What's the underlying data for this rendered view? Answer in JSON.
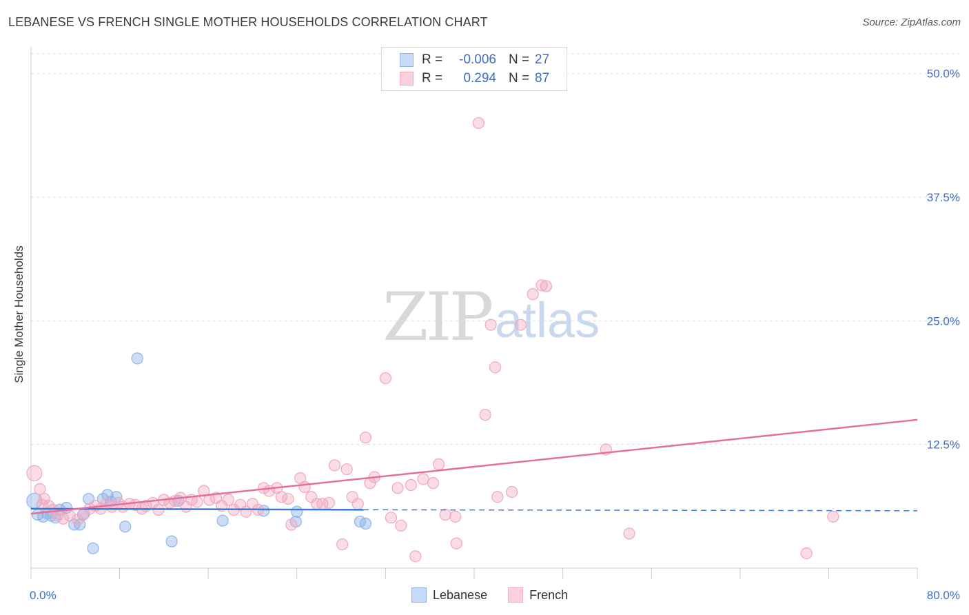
{
  "header": {
    "title": "LEBANESE VS FRENCH SINGLE MOTHER HOUSEHOLDS CORRELATION CHART",
    "source": "Source: ZipAtlas.com"
  },
  "watermark": {
    "zip": "ZIP",
    "atlas": "atlas"
  },
  "legend": {
    "rows": [
      {
        "r_label": "R =",
        "r_value": "-0.006",
        "n_label": "N =",
        "n_value": "27",
        "color": "#8fb4e8"
      },
      {
        "r_label": "R =",
        "r_value": "0.294",
        "n_label": "N =",
        "n_value": "87",
        "color": "#f1a7bf"
      }
    ]
  },
  "bottom_legend": {
    "items": [
      {
        "label": "Lebanese",
        "color": "#8fb4e8"
      },
      {
        "label": "French",
        "color": "#f1a7bf"
      }
    ]
  },
  "chart_data": {
    "type": "scatter",
    "title": "LEBANESE VS FRENCH SINGLE MOTHER HOUSEHOLDS CORRELATION CHART",
    "xlabel": "",
    "ylabel": "Single Mother Households",
    "xlim": [
      0,
      80
    ],
    "ylim": [
      0,
      52
    ],
    "x_tick_labels": [
      "0.0%",
      "80.0%"
    ],
    "y_ticks": [
      12.5,
      25.0,
      37.5,
      50.0
    ],
    "y_tick_labels": [
      "12.5%",
      "25.0%",
      "37.5%",
      "50.0%"
    ],
    "grid": "horizontal-dashed",
    "legend_position": "top-center",
    "series": [
      {
        "name": "Lebanese",
        "color": "#8fb4e8",
        "line_color": "#3a78d4",
        "trend": {
          "x": [
            0,
            30
          ],
          "y": [
            6.0,
            5.9
          ],
          "extended_x": [
            30,
            80
          ],
          "extended_y": [
            5.9,
            5.8
          ]
        },
        "points": [
          [
            0.3,
            6.8
          ],
          [
            0.6,
            5.4
          ],
          [
            1.1,
            5.2
          ],
          [
            1.5,
            5.5
          ],
          [
            1.8,
            5.3
          ],
          [
            2.2,
            5.1
          ],
          [
            2.6,
            5.9
          ],
          [
            3.2,
            6.1
          ],
          [
            3.9,
            4.4
          ],
          [
            4.4,
            4.4
          ],
          [
            4.7,
            5.4
          ],
          [
            5.2,
            7.0
          ],
          [
            6.5,
            7.0
          ],
          [
            6.9,
            7.4
          ],
          [
            7.2,
            6.7
          ],
          [
            7.7,
            7.2
          ],
          [
            5.6,
            2.0
          ],
          [
            8.5,
            4.2
          ],
          [
            9.6,
            21.2
          ],
          [
            12.7,
            2.7
          ],
          [
            13.3,
            6.8
          ],
          [
            17.3,
            4.8
          ],
          [
            21.0,
            5.8
          ],
          [
            23.9,
            4.7
          ],
          [
            24.0,
            5.7
          ],
          [
            29.7,
            4.7
          ],
          [
            30.2,
            4.5
          ]
        ]
      },
      {
        "name": "French",
        "color": "#f1a7bf",
        "line_color": "#e56f98",
        "trend": {
          "x": [
            0,
            80
          ],
          "y": [
            5.5,
            15.0
          ]
        },
        "points": [
          [
            0.3,
            9.6
          ],
          [
            0.8,
            8.0
          ],
          [
            1.2,
            7.0
          ],
          [
            1.6,
            6.3
          ],
          [
            2.0,
            5.9
          ],
          [
            2.4,
            5.3
          ],
          [
            2.9,
            5.0
          ],
          [
            3.5,
            5.3
          ],
          [
            4.2,
            4.9
          ],
          [
            4.8,
            5.5
          ],
          [
            5.3,
            6.0
          ],
          [
            5.8,
            6.3
          ],
          [
            6.3,
            6.0
          ],
          [
            6.8,
            6.5
          ],
          [
            7.3,
            6.2
          ],
          [
            7.9,
            6.6
          ],
          [
            8.3,
            6.2
          ],
          [
            8.9,
            6.5
          ],
          [
            9.4,
            6.4
          ],
          [
            10.0,
            6.0
          ],
          [
            10.4,
            6.3
          ],
          [
            11.0,
            6.6
          ],
          [
            11.5,
            5.9
          ],
          [
            12.0,
            6.9
          ],
          [
            12.5,
            6.6
          ],
          [
            13.0,
            6.8
          ],
          [
            13.5,
            7.1
          ],
          [
            14.0,
            6.2
          ],
          [
            14.5,
            6.9
          ],
          [
            15.0,
            6.7
          ],
          [
            15.6,
            7.8
          ],
          [
            16.1,
            6.9
          ],
          [
            16.7,
            7.1
          ],
          [
            17.2,
            6.3
          ],
          [
            17.8,
            6.9
          ],
          [
            18.3,
            5.9
          ],
          [
            18.9,
            6.4
          ],
          [
            19.4,
            5.7
          ],
          [
            20.0,
            6.5
          ],
          [
            20.5,
            5.9
          ],
          [
            21.0,
            8.1
          ],
          [
            21.5,
            7.8
          ],
          [
            22.2,
            8.1
          ],
          [
            22.6,
            7.2
          ],
          [
            23.2,
            7.0
          ],
          [
            23.5,
            4.4
          ],
          [
            24.3,
            9.1
          ],
          [
            24.7,
            8.2
          ],
          [
            25.3,
            7.2
          ],
          [
            25.8,
            6.5
          ],
          [
            26.3,
            6.5
          ],
          [
            26.9,
            6.6
          ],
          [
            27.4,
            10.4
          ],
          [
            28.1,
            2.4
          ],
          [
            28.5,
            10.0
          ],
          [
            29.0,
            7.2
          ],
          [
            29.5,
            6.5
          ],
          [
            30.2,
            13.2
          ],
          [
            30.6,
            8.6
          ],
          [
            31.0,
            9.2
          ],
          [
            32.0,
            19.2
          ],
          [
            32.5,
            5.1
          ],
          [
            33.1,
            8.1
          ],
          [
            33.4,
            4.3
          ],
          [
            34.3,
            8.4
          ],
          [
            34.7,
            1.2
          ],
          [
            35.4,
            9.0
          ],
          [
            36.3,
            8.6
          ],
          [
            36.8,
            10.5
          ],
          [
            37.4,
            5.4
          ],
          [
            38.3,
            5.2
          ],
          [
            38.4,
            2.5
          ],
          [
            40.4,
            45.0
          ],
          [
            41.0,
            15.5
          ],
          [
            41.9,
            20.3
          ],
          [
            42.1,
            7.2
          ],
          [
            43.4,
            7.7
          ],
          [
            44.2,
            24.6
          ],
          [
            45.3,
            27.7
          ],
          [
            46.1,
            28.6
          ],
          [
            51.9,
            12.0
          ],
          [
            54.0,
            3.5
          ],
          [
            70.0,
            1.5
          ],
          [
            72.4,
            5.2
          ],
          [
            41.5,
            24.6
          ],
          [
            46.5,
            28.5
          ],
          [
            1.0,
            6.4
          ]
        ]
      }
    ]
  }
}
